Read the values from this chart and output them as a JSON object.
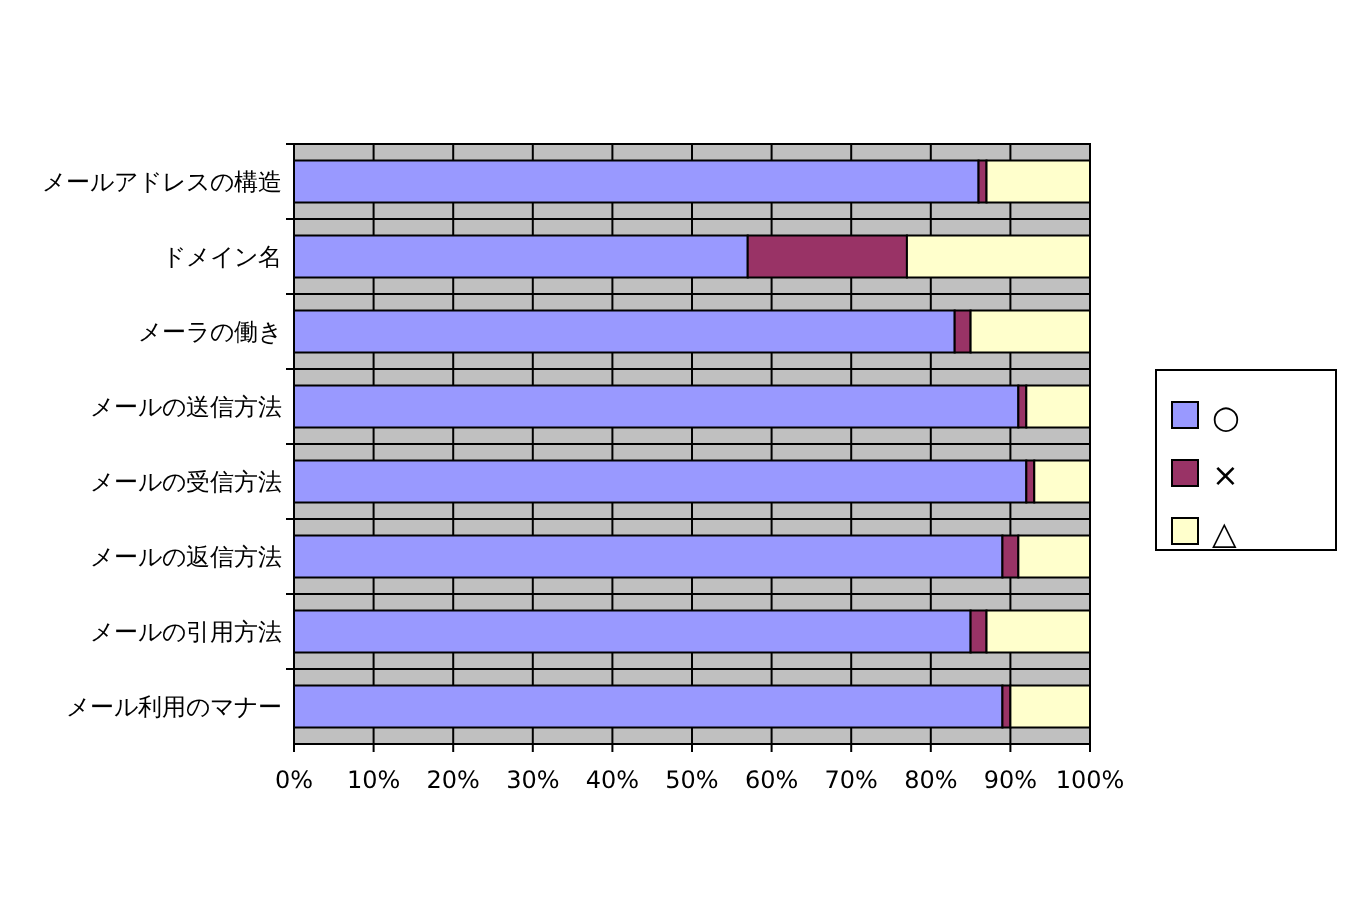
{
  "chart_data": {
    "type": "bar",
    "orientation": "horizontal",
    "stacked": true,
    "categories": [
      "メールアドレスの構造",
      "ドメイン名",
      "メーラの働き",
      "メールの送信方法",
      "メールの受信方法",
      "メールの返信方法",
      "メールの引用方法",
      "メール利用のマナー"
    ],
    "series": [
      {
        "name": "○",
        "color": "#9999ff",
        "values": [
          86,
          57,
          83,
          91,
          92,
          89,
          85,
          89
        ]
      },
      {
        "name": "×",
        "color": "#993366",
        "values": [
          1,
          20,
          2,
          1,
          1,
          2,
          2,
          1
        ]
      },
      {
        "name": "△",
        "color": "#ffffcc",
        "values": [
          13,
          23,
          15,
          8,
          7,
          9,
          13,
          10
        ]
      }
    ],
    "xlim": [
      0,
      100
    ],
    "xticks": [
      {
        "value": 0,
        "label": "0%"
      },
      {
        "value": 10,
        "label": "10%"
      },
      {
        "value": 20,
        "label": "20%"
      },
      {
        "value": 30,
        "label": "30%"
      },
      {
        "value": 40,
        "label": "40%"
      },
      {
        "value": 50,
        "label": "50%"
      },
      {
        "value": 60,
        "label": "60%"
      },
      {
        "value": 70,
        "label": "70%"
      },
      {
        "value": 80,
        "label": "80%"
      },
      {
        "value": 90,
        "label": "90%"
      },
      {
        "value": 100,
        "label": "100%"
      }
    ],
    "grid": true,
    "legend": "right"
  }
}
